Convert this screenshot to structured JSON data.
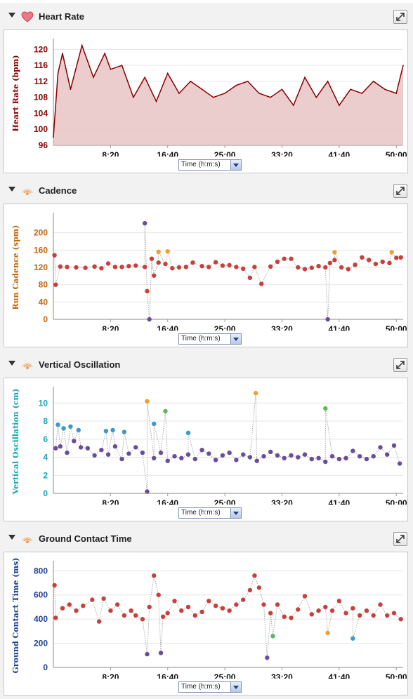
{
  "panels": [
    {
      "id": "hr",
      "title": "Heart Rate",
      "icon": "heart-icon",
      "x_selector": "Time (h:m:s)"
    },
    {
      "id": "cad",
      "title": "Cadence",
      "icon": "running-dynamics-icon",
      "x_selector": "Time (h:m:s)"
    },
    {
      "id": "vo",
      "title": "Vertical Oscillation",
      "icon": "running-dynamics-icon",
      "x_selector": "Time (h:m:s)"
    },
    {
      "id": "gct",
      "title": "Ground Contact Time",
      "icon": "running-dynamics-icon",
      "x_selector": "Time (h:m:s)"
    }
  ],
  "colors": {
    "heart_line": "#8b0000",
    "heart_fill": "#e8c4c4",
    "cadence_label": "#c5650a",
    "vo_label": "#1aa5b8",
    "gct_label": "#1c3f94",
    "dot_red": "#c8403c",
    "dot_purple": "#6b4c9a",
    "dot_orange": "#f0a030",
    "dot_green": "#5cb85c",
    "dot_blue": "#3a9bc8"
  },
  "chart_data": [
    {
      "type": "area",
      "ylabel": "Heart Rate (bpm)",
      "ylim": [
        96,
        122
      ],
      "yticks": [
        96,
        100,
        104,
        108,
        112,
        116,
        120
      ],
      "xlim": [
        0,
        3060
      ],
      "xticks": [
        500,
        1000,
        1500,
        2000,
        2500,
        3000
      ],
      "xticklabels": [
        "8:20",
        "16:40",
        "25:00",
        "33:20",
        "41:40",
        "50:00"
      ],
      "x": [
        0,
        40,
        80,
        150,
        250,
        350,
        450,
        500,
        600,
        700,
        800,
        900,
        1000,
        1100,
        1200,
        1300,
        1400,
        1500,
        1600,
        1700,
        1800,
        1900,
        2000,
        2100,
        2200,
        2300,
        2400,
        2500,
        2600,
        2700,
        2800,
        2900,
        3000,
        3060
      ],
      "values": [
        98,
        114,
        119,
        110,
        121,
        113,
        119,
        115,
        116,
        108,
        113,
        107,
        114,
        109,
        112,
        110,
        108,
        109,
        111,
        112,
        109,
        108,
        110,
        106,
        113,
        108,
        112,
        106,
        110,
        109,
        112,
        110,
        109,
        116
      ]
    },
    {
      "type": "scatter",
      "ylabel": "Run Cadence (spm)",
      "ylim": [
        0,
        240
      ],
      "yticks": [
        0,
        40,
        80,
        120,
        160,
        200
      ],
      "xlim": [
        0,
        3060
      ],
      "xticks": [
        500,
        1000,
        1500,
        2000,
        2500,
        3000
      ],
      "xticklabels": [
        "8:20",
        "16:40",
        "25:00",
        "33:20",
        "41:40",
        "50:00"
      ],
      "series": [
        {
          "color": "red",
          "points": [
            [
              10,
              148
            ],
            [
              20,
              80
            ],
            [
              60,
              122
            ],
            [
              120,
              121
            ],
            [
              200,
              120
            ],
            [
              280,
              119
            ],
            [
              360,
              122
            ],
            [
              420,
              118
            ],
            [
              480,
              129
            ],
            [
              540,
              121
            ],
            [
              600,
              121
            ],
            [
              660,
              123
            ],
            [
              720,
              124
            ],
            [
              800,
              121
            ],
            [
              820,
              65
            ],
            [
              860,
              140
            ],
            [
              880,
              101
            ],
            [
              920,
              131
            ],
            [
              980,
              128
            ],
            [
              1040,
              118
            ],
            [
              1100,
              120
            ],
            [
              1160,
              121
            ],
            [
              1220,
              131
            ],
            [
              1300,
              123
            ],
            [
              1360,
              121
            ],
            [
              1420,
              132
            ],
            [
              1480,
              124
            ],
            [
              1540,
              125
            ],
            [
              1600,
              121
            ],
            [
              1660,
              117
            ],
            [
              1720,
              96
            ],
            [
              1760,
              121
            ],
            [
              1820,
              82
            ],
            [
              1900,
              122
            ],
            [
              1960,
              133
            ],
            [
              2020,
              140
            ],
            [
              2080,
              140
            ],
            [
              2140,
              120
            ],
            [
              2200,
              116
            ],
            [
              2260,
              119
            ],
            [
              2320,
              123
            ],
            [
              2380,
              120
            ],
            [
              2420,
              130
            ],
            [
              2460,
              137
            ],
            [
              2520,
              120
            ],
            [
              2580,
              116
            ],
            [
              2640,
              126
            ],
            [
              2700,
              143
            ],
            [
              2760,
              137
            ],
            [
              2820,
              128
            ],
            [
              2880,
              133
            ],
            [
              2940,
              130
            ],
            [
              3000,
              142
            ],
            [
              3040,
              143
            ]
          ]
        },
        {
          "color": "orange",
          "points": [
            [
              920,
              156
            ],
            [
              1000,
              157
            ],
            [
              2460,
              155
            ],
            [
              2960,
              155
            ]
          ]
        },
        {
          "color": "purple",
          "points": [
            [
              800,
              222
            ],
            [
              840,
              0
            ],
            [
              2400,
              0
            ]
          ]
        }
      ]
    },
    {
      "type": "scatter",
      "ylabel": "Vertical Oscillation (cm)",
      "ylim": [
        0,
        11.5
      ],
      "yticks": [
        0,
        2,
        4,
        6,
        8,
        10
      ],
      "xlim": [
        0,
        3060
      ],
      "xticks": [
        500,
        1000,
        1500,
        2000,
        2500,
        3000
      ],
      "xticklabels": [
        "8:20",
        "16:40",
        "25:00",
        "33:20",
        "41:40",
        "50:00"
      ],
      "series": [
        {
          "color": "purple",
          "points": [
            [
              20,
              5
            ],
            [
              60,
              5.2
            ],
            [
              120,
              4.5
            ],
            [
              180,
              5.8
            ],
            [
              240,
              5.1
            ],
            [
              300,
              5
            ],
            [
              360,
              4.2
            ],
            [
              420,
              4.8
            ],
            [
              480,
              4.3
            ],
            [
              540,
              5.2
            ],
            [
              600,
              3.8
            ],
            [
              660,
              4.4
            ],
            [
              720,
              5.1
            ],
            [
              780,
              4.5
            ],
            [
              820,
              0.2
            ],
            [
              880,
              3.9
            ],
            [
              940,
              4.5
            ],
            [
              1000,
              3.6
            ],
            [
              1060,
              4.1
            ],
            [
              1120,
              3.9
            ],
            [
              1180,
              4.3
            ],
            [
              1240,
              3.8
            ],
            [
              1300,
              4.8
            ],
            [
              1360,
              4.4
            ],
            [
              1420,
              3.7
            ],
            [
              1480,
              4.2
            ],
            [
              1540,
              4.5
            ],
            [
              1600,
              3.7
            ],
            [
              1660,
              4.3
            ],
            [
              1720,
              4
            ],
            [
              1780,
              3.6
            ],
            [
              1840,
              4.1
            ],
            [
              1900,
              4.6
            ],
            [
              1960,
              4.2
            ],
            [
              2020,
              3.9
            ],
            [
              2080,
              4.2
            ],
            [
              2140,
              4
            ],
            [
              2200,
              4.3
            ],
            [
              2260,
              3.8
            ],
            [
              2320,
              3.9
            ],
            [
              2380,
              3.5
            ],
            [
              2440,
              4.1
            ],
            [
              2500,
              3.8
            ],
            [
              2560,
              3.9
            ],
            [
              2620,
              4.7
            ],
            [
              2680,
              4.1
            ],
            [
              2740,
              3.8
            ],
            [
              2800,
              4.1
            ],
            [
              2860,
              5.1
            ],
            [
              2920,
              4.3
            ],
            [
              2980,
              5.3
            ],
            [
              3030,
              3.3
            ]
          ]
        },
        {
          "color": "blue",
          "points": [
            [
              40,
              7.6
            ],
            [
              90,
              7.2
            ],
            [
              150,
              7.4
            ],
            [
              220,
              7
            ],
            [
              460,
              6.9
            ],
            [
              520,
              7
            ],
            [
              620,
              6.8
            ],
            [
              880,
              7.7
            ],
            [
              1180,
              6.7
            ]
          ]
        },
        {
          "color": "orange",
          "points": [
            [
              820,
              10.2
            ],
            [
              1770,
              11.1
            ]
          ]
        },
        {
          "color": "green",
          "points": [
            [
              980,
              9.1
            ],
            [
              2380,
              9.4
            ]
          ]
        }
      ]
    },
    {
      "type": "scatter",
      "ylabel": "Ground Contact Time (ms)",
      "ylim": [
        0,
        860
      ],
      "yticks": [
        0,
        200,
        400,
        600,
        800
      ],
      "xlim": [
        0,
        3060
      ],
      "xticks": [
        500,
        1000,
        1500,
        2000,
        2500,
        3000
      ],
      "xticklabels": [
        "8:20",
        "16:40",
        "25:00",
        "33:20",
        "41:40",
        "50:00"
      ],
      "series": [
        {
          "color": "red",
          "points": [
            [
              10,
              680
            ],
            [
              20,
              410
            ],
            [
              80,
              490
            ],
            [
              140,
              520
            ],
            [
              200,
              470
            ],
            [
              260,
              510
            ],
            [
              340,
              560
            ],
            [
              400,
              380
            ],
            [
              440,
              570
            ],
            [
              500,
              470
            ],
            [
              560,
              520
            ],
            [
              620,
              430
            ],
            [
              680,
              470
            ],
            [
              720,
              430
            ],
            [
              780,
              400
            ],
            [
              840,
              500
            ],
            [
              880,
              760
            ],
            [
              920,
              600
            ],
            [
              960,
              420
            ],
            [
              1000,
              450
            ],
            [
              1060,
              550
            ],
            [
              1120,
              470
            ],
            [
              1180,
              500
            ],
            [
              1240,
              430
            ],
            [
              1300,
              460
            ],
            [
              1360,
              550
            ],
            [
              1420,
              510
            ],
            [
              1480,
              490
            ],
            [
              1540,
              470
            ],
            [
              1600,
              520
            ],
            [
              1660,
              560
            ],
            [
              1720,
              640
            ],
            [
              1760,
              760
            ],
            [
              1800,
              660
            ],
            [
              1840,
              520
            ],
            [
              1900,
              450
            ],
            [
              1960,
              520
            ],
            [
              2020,
              420
            ],
            [
              2080,
              410
            ],
            [
              2140,
              480
            ],
            [
              2200,
              590
            ],
            [
              2260,
              440
            ],
            [
              2320,
              470
            ],
            [
              2380,
              500
            ],
            [
              2440,
              470
            ],
            [
              2500,
              550
            ],
            [
              2560,
              450
            ],
            [
              2620,
              490
            ],
            [
              2680,
              430
            ],
            [
              2740,
              470
            ],
            [
              2800,
              430
            ],
            [
              2860,
              520
            ],
            [
              2920,
              430
            ],
            [
              2980,
              450
            ],
            [
              3040,
              400
            ]
          ]
        },
        {
          "color": "purple",
          "points": [
            [
              820,
              110
            ],
            [
              940,
              120
            ],
            [
              1870,
              80
            ]
          ]
        },
        {
          "color": "green",
          "points": [
            [
              1920,
              260
            ]
          ]
        },
        {
          "color": "orange",
          "points": [
            [
              2400,
              285
            ]
          ]
        },
        {
          "color": "blue",
          "points": [
            [
              2620,
              240
            ]
          ]
        }
      ]
    }
  ]
}
